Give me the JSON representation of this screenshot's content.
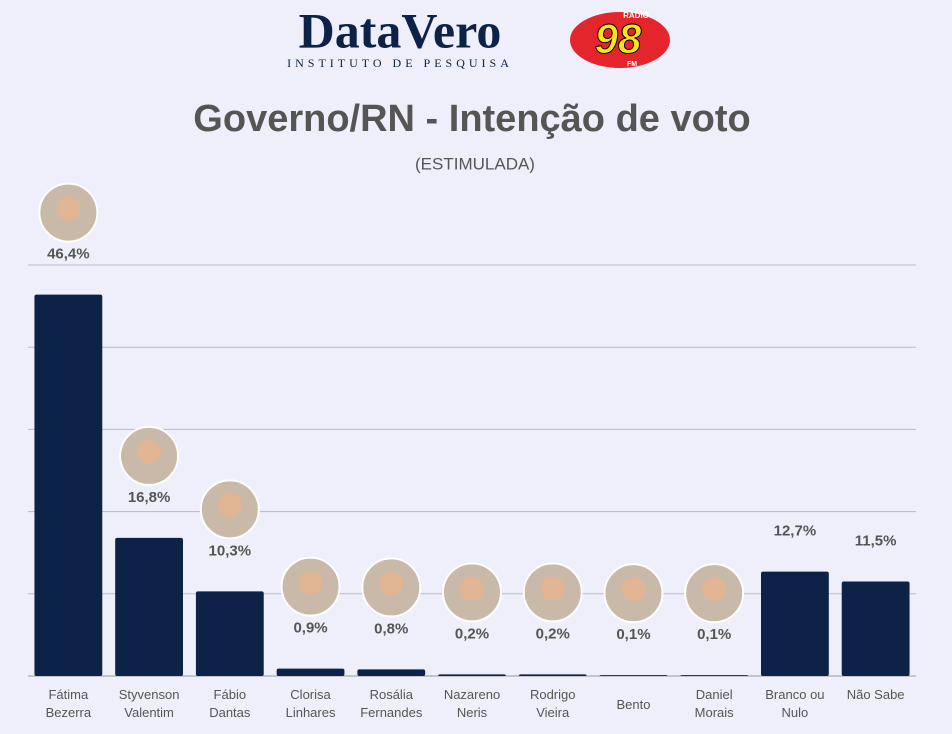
{
  "header": {
    "brand": "DataVero",
    "brand_sub": "INSTITUTO DE PESQUISA",
    "radio_top": "RÁDIO",
    "radio_number": "98",
    "radio_bottom": "FM"
  },
  "chart_data": {
    "type": "bar",
    "title": "Governo/RN - Intenção de voto",
    "subtitle": "(ESTIMULADA)",
    "categories": [
      "Fátima Bezerra",
      "Styvenson Valentim",
      "Fábio Dantas",
      "Clorisa Linhares",
      "Rosália Fernandes",
      "Nazareno Neris",
      "Rodrigo Vieira",
      "Bento",
      "Daniel Morais",
      "Branco ou Nulo",
      "Não Sabe"
    ],
    "values": [
      46.4,
      16.8,
      10.3,
      0.9,
      0.8,
      0.2,
      0.2,
      0.1,
      0.1,
      12.7,
      11.5
    ],
    "value_labels": [
      "46,4%",
      "16,8%",
      "10,3%",
      "0,9%",
      "0,8%",
      "0,2%",
      "0,2%",
      "0,1%",
      "0,1%",
      "12,7%",
      "11,5%"
    ],
    "color": "#0c2246",
    "ylim": [
      0,
      50
    ],
    "yticks": [
      0,
      10,
      20,
      30,
      40,
      50
    ],
    "grid": true
  }
}
